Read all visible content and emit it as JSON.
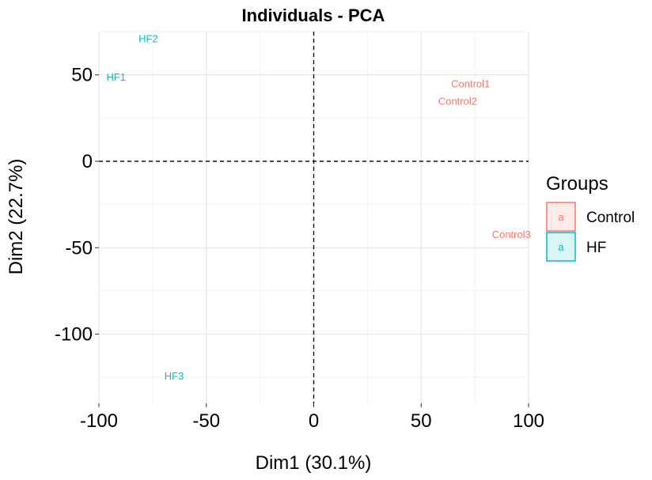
{
  "chart_data": {
    "type": "scatter",
    "title": "Individuals - PCA",
    "xlabel": "Dim1 (30.1%)",
    "ylabel": "Dim2 (22.7%)",
    "xlim": [
      -100,
      100
    ],
    "ylim": [
      -140,
      75
    ],
    "xticks": [
      -100,
      -50,
      0,
      50,
      100
    ],
    "yticks": [
      -100,
      -50,
      0,
      50
    ],
    "grid": true,
    "reference_lines": {
      "x": 0,
      "y": 0,
      "style": "dashed"
    },
    "legend": {
      "title": "Groups",
      "placement": "right",
      "key_glyph": "a",
      "entries": [
        {
          "name": "Control",
          "color": "#F8766D"
        },
        {
          "name": "HF",
          "color": "#00BFC4"
        }
      ]
    },
    "series": [
      {
        "name": "Control",
        "color": "#F8766D",
        "points": [
          {
            "label": "Control1",
            "x": 73,
            "y": 45
          },
          {
            "label": "Control2",
            "x": 67,
            "y": 35
          },
          {
            "label": "Control3",
            "x": 92,
            "y": -42
          }
        ]
      },
      {
        "name": "HF",
        "color": "#00BFC4",
        "points": [
          {
            "label": "HF1",
            "x": -92,
            "y": 49
          },
          {
            "label": "HF2",
            "x": -77,
            "y": 71
          },
          {
            "label": "HF3",
            "x": -65,
            "y": -124
          }
        ]
      }
    ]
  }
}
